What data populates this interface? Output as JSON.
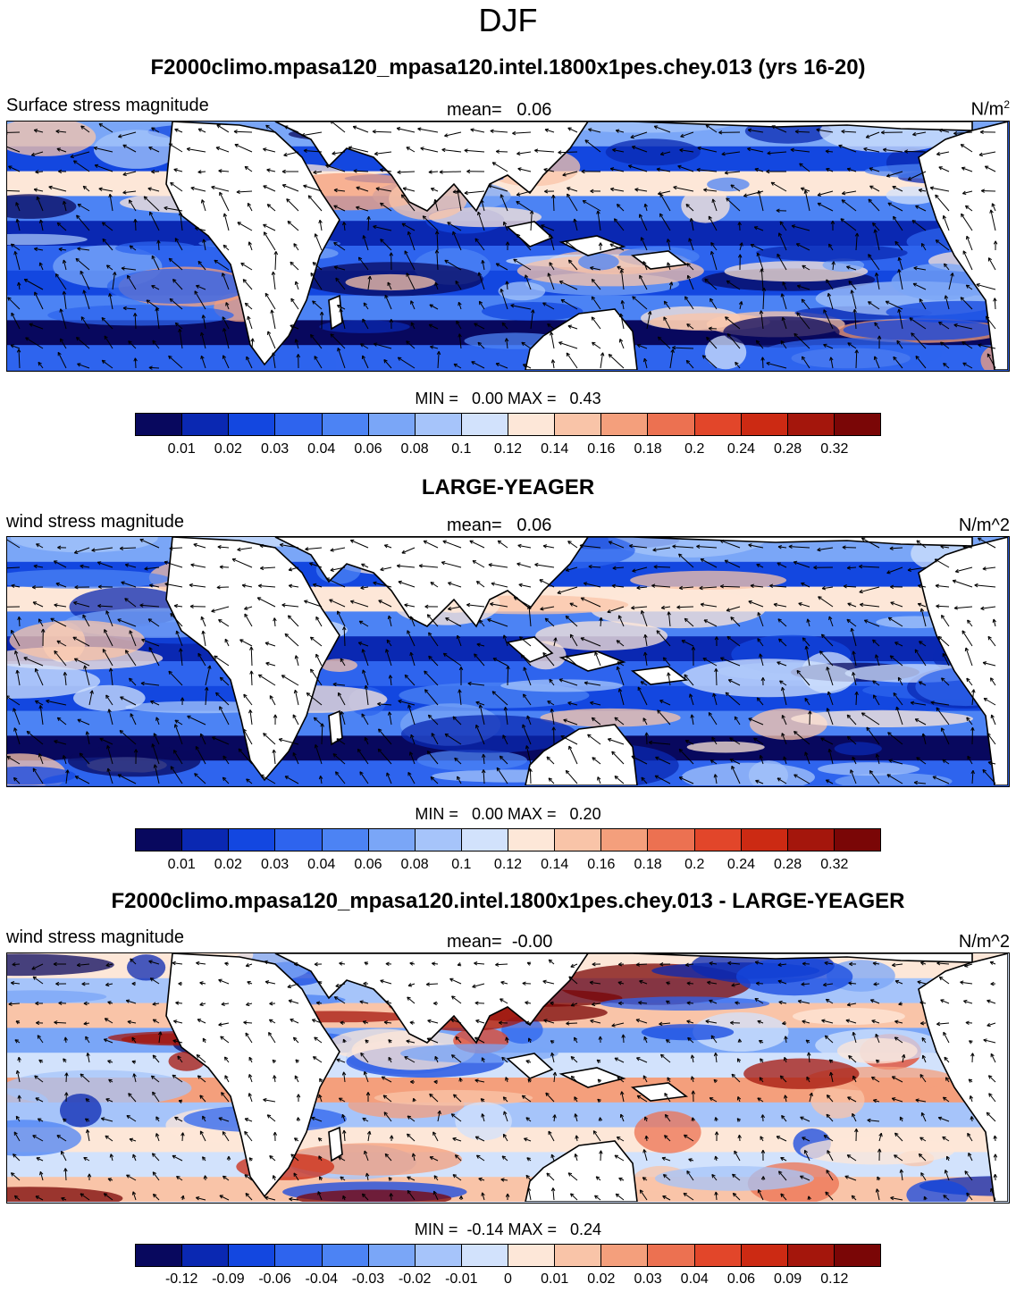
{
  "page_title": "DJF",
  "colormap": [
    "#08085e",
    "#0a28b2",
    "#1347e0",
    "#2e64ee",
    "#4c83f4",
    "#7aa6f7",
    "#a6c4fa",
    "#d2e2fc",
    "#fde7d8",
    "#f9c4a8",
    "#f49f7c",
    "#ec7151",
    "#e2462a",
    "#cc2a13",
    "#a4160c",
    "#7a0606"
  ],
  "land_color": "#ffffff",
  "chart_data": [
    {
      "type": "heatmap",
      "title": "F2000climo.mpasa120_mpasa120.intel.1800x1pes.chey.013 (yrs 16-20)",
      "left_label": "Surface stress magnitude",
      "mean_label": "mean=",
      "mean_value": "0.06",
      "units_text": "N/m",
      "units_sup": "2",
      "min_label": "MIN =",
      "min_value": "0.00",
      "max_label": "MAX =",
      "max_value": "0.43",
      "colorbar_levels": [
        "0.01",
        "0.02",
        "0.03",
        "0.04",
        "0.06",
        "0.08",
        "0.1",
        "0.12",
        "0.14",
        "0.16",
        "0.18",
        "0.2",
        "0.24",
        "0.28",
        "0.32"
      ],
      "variable": "surface stress magnitude with stress vectors",
      "domain": "tropics and subtropics, global longitude"
    },
    {
      "type": "heatmap",
      "title": "LARGE-YEAGER",
      "left_label": "wind stress magnitude",
      "mean_label": "mean=",
      "mean_value": "0.06",
      "units_text": "N/m^2",
      "min_label": "MIN =",
      "min_value": "0.00",
      "max_label": "MAX =",
      "max_value": "0.20",
      "colorbar_levels": [
        "0.01",
        "0.02",
        "0.03",
        "0.04",
        "0.06",
        "0.08",
        "0.1",
        "0.12",
        "0.14",
        "0.16",
        "0.18",
        "0.2",
        "0.24",
        "0.28",
        "0.32"
      ],
      "variable": "wind stress magnitude with stress vectors",
      "domain": "tropics and subtropics, global longitude"
    },
    {
      "type": "heatmap",
      "title": "F2000climo.mpasa120_mpasa120.intel.1800x1pes.chey.013 - LARGE-YEAGER",
      "left_label": "wind stress magnitude",
      "mean_label": "mean=",
      "mean_value": "-0.00",
      "units_text": "N/m^2",
      "min_label": "MIN =",
      "min_value": "-0.14",
      "max_label": "MAX =",
      "max_value": "0.24",
      "colorbar_levels": [
        "-0.12",
        "-0.09",
        "-0.06",
        "-0.04",
        "-0.03",
        "-0.02",
        "-0.01",
        "0",
        "0.01",
        "0.02",
        "0.03",
        "0.04",
        "0.06",
        "0.09",
        "0.12"
      ],
      "variable": "difference in wind stress magnitude with difference vectors",
      "domain": "tropics and subtropics, global longitude"
    }
  ]
}
